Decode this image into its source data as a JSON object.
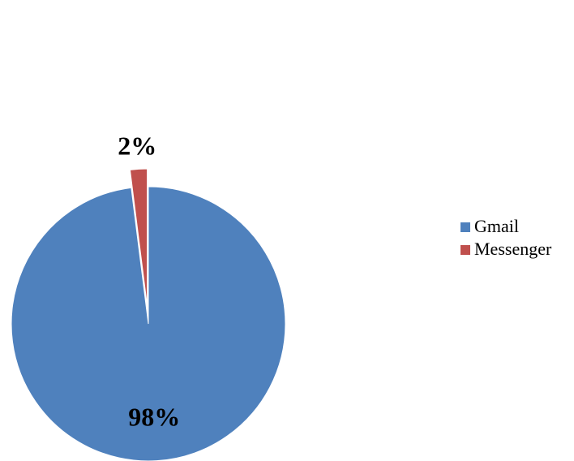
{
  "chart_data": {
    "type": "pie",
    "categories": [
      "Gmail",
      "Messenger"
    ],
    "values": [
      98,
      2
    ],
    "data_labels": [
      "98%",
      "2%"
    ],
    "colors": [
      "#4F81BD",
      "#C0504D"
    ],
    "exploded": "Messenger",
    "legend": {
      "placement": "right",
      "entries": [
        "Gmail",
        "Messenger"
      ]
    },
    "title": ""
  }
}
